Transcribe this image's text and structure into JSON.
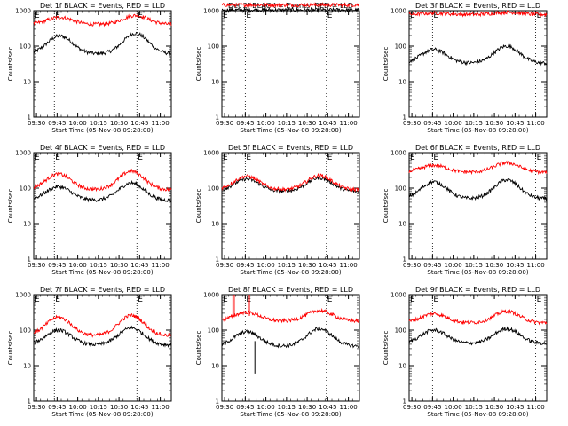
{
  "shared": {
    "x_tick_labels": [
      "09:30",
      "09:45",
      "10:00",
      "10:15",
      "10:30",
      "10:45",
      "11:00"
    ],
    "y_tick_labels": [
      "1",
      "10",
      "100",
      "1000"
    ],
    "ylabel": "Counts/sec",
    "xlabel": "Start Time (05-Nov-08 09:28:00)",
    "marker_labels": [
      "E",
      "E"
    ],
    "colors": {
      "events": "#000000",
      "lld": "#ff0000"
    }
  },
  "chart_data": [
    {
      "title": "Det 1f BLACK = Events, RED = LLD",
      "type": "line",
      "x": [
        "09:28",
        "11:08"
      ],
      "xlim": [
        "09:28",
        "11:08"
      ],
      "ylim": [
        1,
        1000
      ],
      "yscale": "log",
      "vlines": [
        "09:43",
        "10:43"
      ],
      "series": [
        {
          "name": "Events",
          "baseline": 60,
          "peaks": [
            {
              "x": "09:47",
              "y": 195
            },
            {
              "x": "10:42",
              "y": 230
            }
          ]
        },
        {
          "name": "LLD",
          "baseline": 410,
          "peaks": [
            {
              "x": "09:47",
              "y": 650
            },
            {
              "x": "10:42",
              "y": 730
            }
          ]
        }
      ]
    },
    {
      "title": "Det 2f BLACK = Events, RED = LLD",
      "type": "line",
      "x": [
        "09:28",
        "11:08"
      ],
      "xlim": [
        "09:28",
        "11:08"
      ],
      "ylim": [
        1,
        1000
      ],
      "yscale": "log",
      "vlines": [
        "09:45",
        "10:44"
      ],
      "series": [
        {
          "name": "Events",
          "baseline": 1050,
          "peaks": []
        },
        {
          "name": "LLD",
          "baseline": 1450,
          "peaks": []
        }
      ]
    },
    {
      "title": "Det 3f BLACK = Events, RED = LLD",
      "type": "line",
      "x": [
        "09:28",
        "11:08"
      ],
      "xlim": [
        "09:28",
        "11:08"
      ],
      "ylim": [
        1,
        1000
      ],
      "yscale": "log",
      "vlines": [
        "09:45",
        "11:00"
      ],
      "series": [
        {
          "name": "Events",
          "baseline": 33,
          "peaks": [
            {
              "x": "09:46",
              "y": 80
            },
            {
              "x": "10:39",
              "y": 100
            }
          ]
        },
        {
          "name": "LLD",
          "baseline": 780,
          "peaks": [
            {
              "x": "09:46",
              "y": 850
            },
            {
              "x": "10:39",
              "y": 900
            }
          ]
        }
      ]
    },
    {
      "title": "Det 4f BLACK = Events, RED = LLD",
      "type": "line",
      "x": [
        "09:28",
        "11:08"
      ],
      "xlim": [
        "09:28",
        "11:08"
      ],
      "ylim": [
        1,
        1000
      ],
      "yscale": "log",
      "vlines": [
        "09:43",
        "10:43"
      ],
      "series": [
        {
          "name": "Events",
          "baseline": 45,
          "peaks": [
            {
              "x": "09:46",
              "y": 110
            },
            {
              "x": "10:39",
              "y": 140
            }
          ]
        },
        {
          "name": "LLD",
          "baseline": 90,
          "peaks": [
            {
              "x": "09:46",
              "y": 250
            },
            {
              "x": "10:39",
              "y": 300
            }
          ]
        }
      ]
    },
    {
      "title": "Det 5f BLACK = Events, RED = LLD",
      "type": "line",
      "x": [
        "09:28",
        "11:08"
      ],
      "xlim": [
        "09:28",
        "11:08"
      ],
      "ylim": [
        1,
        1000
      ],
      "yscale": "log",
      "vlines": [
        "09:45",
        "10:44"
      ],
      "series": [
        {
          "name": "Events",
          "baseline": 80,
          "peaks": [
            {
              "x": "09:46",
              "y": 180
            },
            {
              "x": "10:39",
              "y": 195
            }
          ]
        },
        {
          "name": "LLD",
          "baseline": 90,
          "peaks": [
            {
              "x": "09:46",
              "y": 215
            },
            {
              "x": "10:39",
              "y": 225
            }
          ]
        }
      ]
    },
    {
      "title": "Det 6f BLACK = Events, RED = LLD",
      "type": "line",
      "x": [
        "09:28",
        "11:08"
      ],
      "xlim": [
        "09:28",
        "11:08"
      ],
      "ylim": [
        1,
        1000
      ],
      "yscale": "log",
      "vlines": [
        "09:45",
        "11:00"
      ],
      "series": [
        {
          "name": "Events",
          "baseline": 50,
          "peaks": [
            {
              "x": "09:46",
              "y": 150
            },
            {
              "x": "10:39",
              "y": 170
            }
          ]
        },
        {
          "name": "LLD",
          "baseline": 280,
          "peaks": [
            {
              "x": "09:46",
              "y": 440
            },
            {
              "x": "10:39",
              "y": 520
            }
          ]
        }
      ]
    },
    {
      "title": "Det 7f BLACK = Events, RED = LLD",
      "type": "line",
      "x": [
        "09:28",
        "11:08"
      ],
      "xlim": [
        "09:28",
        "11:08"
      ],
      "ylim": [
        1,
        1000
      ],
      "yscale": "log",
      "vlines": [
        "09:43",
        "10:43"
      ],
      "series": [
        {
          "name": "Events",
          "baseline": 38,
          "peaks": [
            {
              "x": "09:46",
              "y": 100
            },
            {
              "x": "10:39",
              "y": 115
            }
          ]
        },
        {
          "name": "LLD",
          "baseline": 70,
          "peaks": [
            {
              "x": "09:46",
              "y": 230
            },
            {
              "x": "10:39",
              "y": 260
            }
          ]
        }
      ]
    },
    {
      "title": "Det 8f BLACK = Events, RED = LLD",
      "type": "line",
      "x": [
        "09:28",
        "11:08"
      ],
      "xlim": [
        "09:28",
        "11:08"
      ],
      "ylim": [
        1,
        1000
      ],
      "yscale": "log",
      "vlines": [
        "09:45",
        "10:44"
      ],
      "series": [
        {
          "name": "Events",
          "baseline": 35,
          "peaks": [
            {
              "x": "09:46",
              "y": 90
            },
            {
              "x": "10:39",
              "y": 110
            }
          ],
          "spikes": [
            {
              "x": "09:52",
              "y": 6
            }
          ]
        },
        {
          "name": "LLD",
          "baseline": 180,
          "peaks": [
            {
              "x": "09:46",
              "y": 320
            },
            {
              "x": "10:39",
              "y": 360
            }
          ],
          "spikes": [
            {
              "x": "09:36",
              "y": 1000
            },
            {
              "x": "09:37",
              "y": 1000
            },
            {
              "x": "09:48",
              "y": 1000
            }
          ]
        }
      ]
    },
    {
      "title": "Det 9f BLACK = Events, RED = LLD",
      "type": "line",
      "x": [
        "09:28",
        "11:08"
      ],
      "xlim": [
        "09:28",
        "11:08"
      ],
      "ylim": [
        1,
        1000
      ],
      "yscale": "log",
      "vlines": [
        "09:45",
        "11:00"
      ],
      "series": [
        {
          "name": "Events",
          "baseline": 42,
          "peaks": [
            {
              "x": "09:46",
              "y": 100
            },
            {
              "x": "10:39",
              "y": 110
            }
          ]
        },
        {
          "name": "LLD",
          "baseline": 160,
          "peaks": [
            {
              "x": "09:46",
              "y": 290
            },
            {
              "x": "10:39",
              "y": 340
            }
          ]
        }
      ]
    }
  ]
}
